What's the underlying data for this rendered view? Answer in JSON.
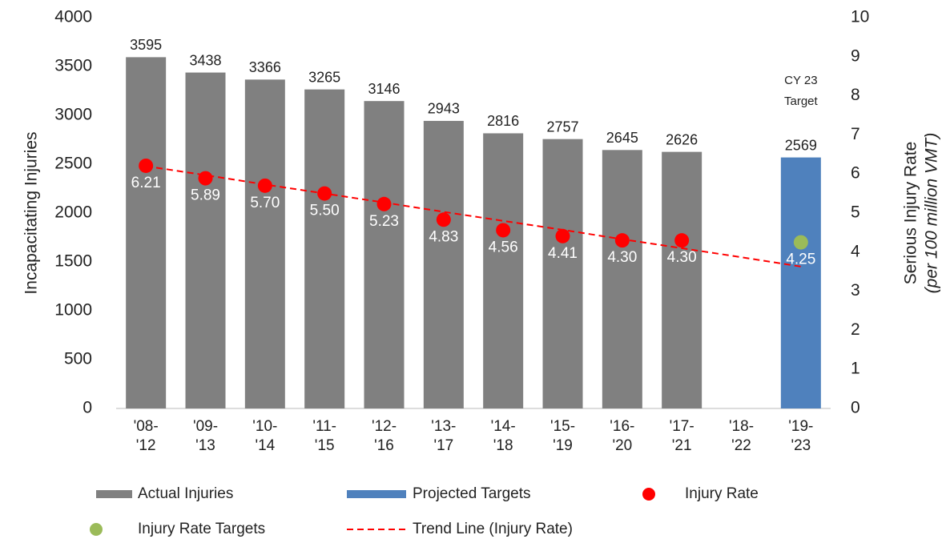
{
  "chart_data": {
    "type": "bar",
    "ylabel": "Incapacitating Injuries",
    "y2label": "Serious Injury Rate",
    "y2label_sub": "(per 100 million VMT)",
    "annotation": "CY 23\nTarget",
    "categories": [
      "'08-\n'12",
      "'09-\n'13",
      "'10-\n'14",
      "'11-\n'15",
      "'12-\n'16",
      "'13-\n'17",
      "'14-\n'18",
      "'15-\n'19",
      "'16-\n'20",
      "'17-\n'21",
      "'18-\n'22",
      "'19-\n'23"
    ],
    "series": [
      {
        "name": "Actual Injuries",
        "type": "bar",
        "color": "#808080",
        "values": [
          3595,
          3438,
          3366,
          3265,
          3146,
          2943,
          2816,
          2757,
          2645,
          2626,
          null,
          null
        ]
      },
      {
        "name": "Projected Targets",
        "type": "bar",
        "color": "#4f81bd",
        "values": [
          null,
          null,
          null,
          null,
          null,
          null,
          null,
          null,
          null,
          null,
          null,
          2569
        ]
      },
      {
        "name": "Injury Rate",
        "type": "scatter",
        "axis": "y2",
        "color": "#ff0000",
        "values": [
          6.21,
          5.89,
          5.7,
          5.5,
          5.23,
          4.83,
          4.56,
          4.41,
          4.3,
          4.3,
          null,
          null
        ],
        "value_labels": [
          "6.21",
          "5.89",
          "5.70",
          "5.50",
          "5.23",
          "4.83",
          "4.56",
          "4.41",
          "4.30",
          "4.30",
          null,
          null
        ]
      },
      {
        "name": "Injury Rate Targets",
        "type": "scatter",
        "axis": "y2",
        "color": "#9bbb59",
        "values": [
          null,
          null,
          null,
          null,
          null,
          null,
          null,
          null,
          null,
          null,
          null,
          4.25
        ]
      },
      {
        "name": "Trend Line (Injury Rate)",
        "type": "line",
        "axis": "y2",
        "color": "#ff0000",
        "dashed": true,
        "values": [
          6.2,
          5.97,
          5.73,
          5.5,
          5.27,
          5.03,
          4.8,
          4.57,
          4.33,
          4.1,
          3.87,
          3.63
        ]
      }
    ],
    "ylim": [
      0,
      4000
    ],
    "yticks": [
      0,
      500,
      1000,
      1500,
      2000,
      2500,
      3000,
      3500,
      4000
    ],
    "y2lim": [
      0,
      10
    ],
    "y2ticks": [
      0,
      1,
      2,
      3,
      4,
      5,
      6,
      7,
      8,
      9,
      10
    ],
    "grid": false,
    "legend": "bottom"
  }
}
